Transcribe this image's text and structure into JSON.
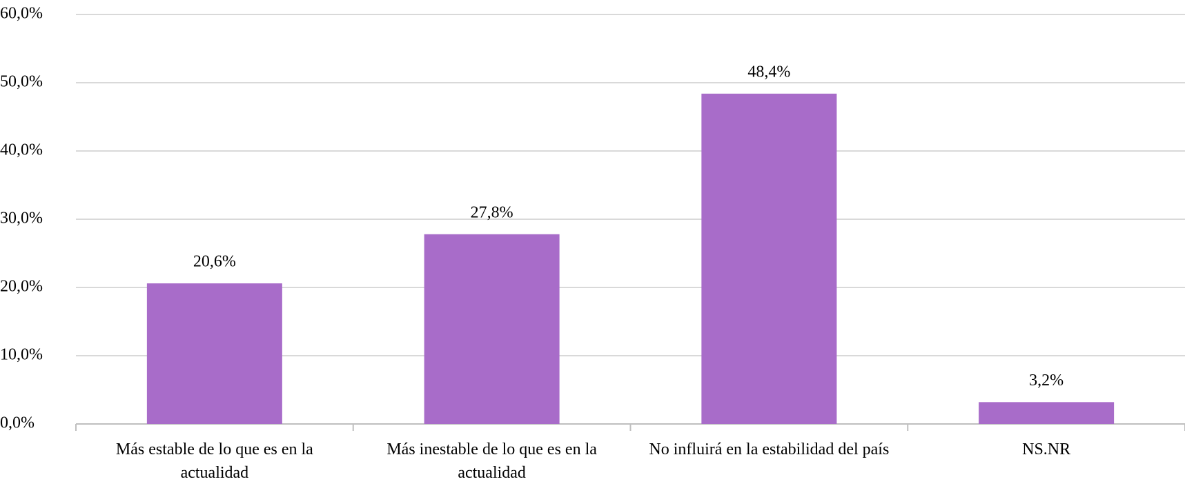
{
  "chart_data": {
    "type": "bar",
    "categories": [
      "Más estable de lo que es en la actualidad",
      "Más inestable de lo que es en la actualidad",
      "No influirá en la estabilidad del país",
      "NS.NR"
    ],
    "values": [
      20.6,
      27.8,
      48.4,
      3.2
    ],
    "value_labels": [
      "20,6%",
      "27,8%",
      "48,4%",
      "3,2%"
    ],
    "color": "#a86cc9",
    "ylim": [
      0,
      60
    ],
    "yticks": [
      {
        "value": 0,
        "label": "0,0%"
      },
      {
        "value": 10,
        "label": "10,0%"
      },
      {
        "value": 20,
        "label": "20,0%"
      },
      {
        "value": 30,
        "label": "30,0%"
      },
      {
        "value": 40,
        "label": "40,0%"
      },
      {
        "value": 50,
        "label": "50,0%"
      },
      {
        "value": 60,
        "label": "60,0%"
      }
    ],
    "grid": true
  }
}
